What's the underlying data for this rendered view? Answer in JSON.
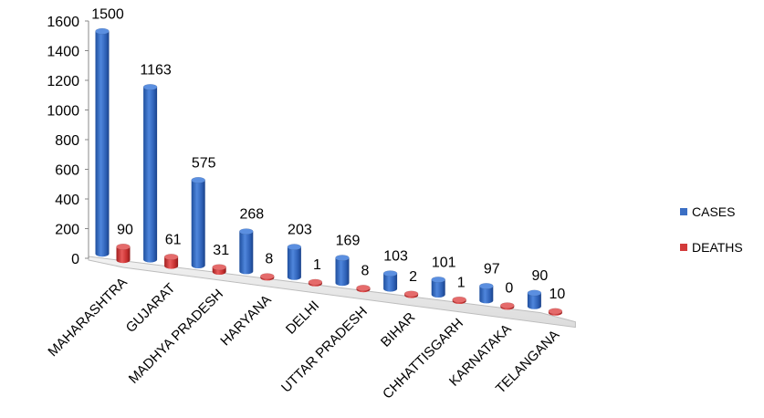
{
  "chart_data": {
    "type": "bar",
    "style": "3d-cylinder",
    "categories": [
      "MAHARASHTRA",
      "GUJARAT",
      "MADHYA PRADESH",
      "HARYANA",
      "DELHI",
      "UTTAR PRADESH",
      "BIHAR",
      "CHHATTISGARH",
      "KARNATAKA",
      "TELANGANA"
    ],
    "series": [
      {
        "name": "CASES",
        "color": "#3B6FC4",
        "values": [
          1500,
          1163,
          575,
          268,
          203,
          169,
          103,
          101,
          97,
          90
        ]
      },
      {
        "name": "DEATHS",
        "color": "#D33A3A",
        "values": [
          90,
          61,
          31,
          8,
          1,
          8,
          2,
          1,
          0,
          10
        ]
      }
    ],
    "yticks": [
      0,
      200,
      400,
      600,
      800,
      1000,
      1200,
      1400,
      1600
    ],
    "ylim": [
      0,
      1600
    ],
    "legend": "right",
    "grid": false
  }
}
